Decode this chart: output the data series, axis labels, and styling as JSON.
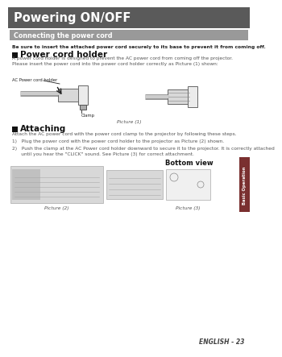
{
  "bg_color": "#ffffff",
  "title_text": "Powering ON/OFF",
  "title_bg": "#5a5a5a",
  "title_fg": "#ffffff",
  "section_bg": "#999999",
  "section_fg": "#ffffff",
  "section_text": "Connecting the power cord",
  "bold_line": "Be sure to insert the attached power cord securely to its base to prevent it from coming off.",
  "h2_1": "Power cord holder",
  "body1_l1": "A power cord holder is designed to prevent the AC power cord from coming off the projector.",
  "body1_l2": "Please insert the power cord into the power cord holder correctly as Picture (1) shown:",
  "h2_2": "Attaching",
  "attach_intro": "Attach the AC power cord with the power cord clamp to the projector by following these steps.",
  "step1": "1)   Plug the power cord with the power cord holder to the projector as Picture (2) shown.",
  "step2a": "2)   Push the clamp at the AC Power cord holder downward to secure it to the projector. It is correctly attached",
  "step2b": "      until you hear the \"CLICK\" sound. See Picture (3) for correct attachment.",
  "label_ac": "AC Power cord holder",
  "label_clamp": "Clamp",
  "label_pic1": "Picture (1)",
  "label_pic2": "Picture (2)",
  "label_pic3": "Picture (3)",
  "label_bottom": "Bottom view",
  "footer": "ENGLISH - 23",
  "sidebar": "Basic Operation",
  "sidebar_bg": "#7a3030",
  "gray_line_color": "#888888",
  "img_border": "#aaaaaa",
  "img_fill": "#e8e8e8",
  "img_fill2": "#d8d8d8",
  "text_dark": "#222222",
  "text_body": "#555555"
}
